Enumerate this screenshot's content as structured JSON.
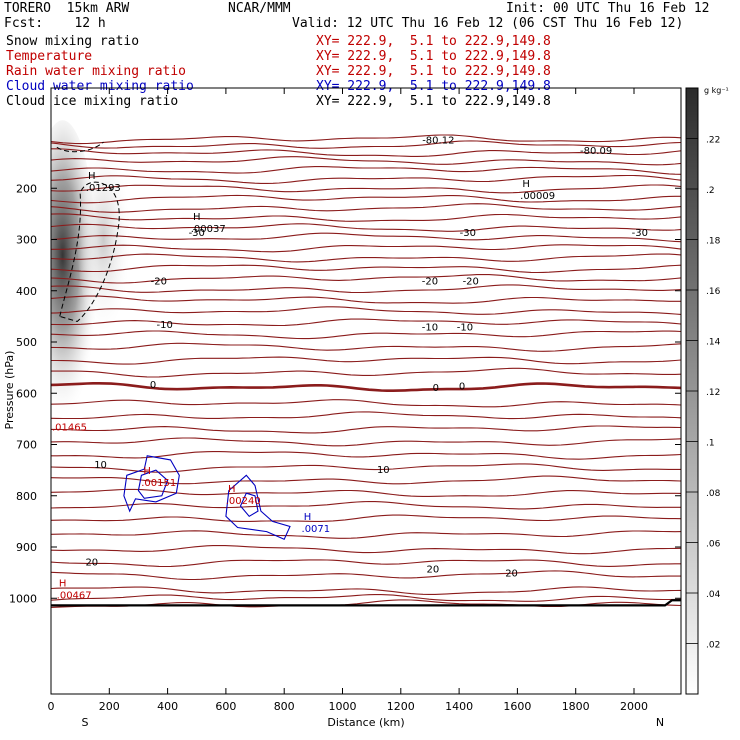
{
  "header": {
    "model": "TORERO  15km ARW",
    "center": "NCAR/MMM",
    "init": "Init: 00 UTC Thu 16 Feb 12",
    "fcst": "Fcst:    12 h",
    "valid": "Valid: 12 UTC Thu 16 Feb 12 (06 CST Thu 16 Feb 12)",
    "fields": [
      {
        "name": "Snow mixing ratio",
        "xy": "XY= 222.9,  5.1 to 222.9,149.8",
        "color": "#000000"
      },
      {
        "name": "Temperature",
        "xy": "XY= 222.9,  5.1 to 222.9,149.8",
        "color": "#c00000"
      },
      {
        "name": "Rain water mixing ratio",
        "xy": "XY= 222.9,  5.1 to 222.9,149.8",
        "color": "#c00000"
      },
      {
        "name": "Cloud water mixing ratio",
        "xy": "XY= 222.9,  5.1 to 222.9,149.8",
        "color": "#0000c0"
      },
      {
        "name": "Cloud ice mixing ratio",
        "xy": "XY= 222.9,  5.1 to 222.9,149.8",
        "color": "#000000"
      }
    ]
  },
  "chart_data": {
    "type": "cross-section contour",
    "xlabel": "Distance (km)",
    "ylabel": "Pressure (hPa)",
    "xlim": [
      0,
      2150
    ],
    "ylim": [
      1040,
      100
    ],
    "xticks": [
      0,
      200,
      400,
      600,
      800,
      1000,
      1200,
      1400,
      1600,
      1800,
      2000
    ],
    "yticks": [
      200,
      300,
      400,
      500,
      600,
      700,
      800,
      900,
      1000
    ],
    "endpoints": {
      "left": "S",
      "right": "N"
    },
    "colorbar": {
      "unit": "g kg⁻¹",
      "ticks": [
        ".02",
        ".04",
        ".06",
        ".08",
        ".1",
        ".12",
        ".14",
        ".16",
        ".18",
        ".2",
        ".22"
      ],
      "min": 0,
      "max": 0.24
    },
    "temperature_labels": [
      {
        "text": "-80.09",
        "x": 1870,
        "p": 125
      },
      {
        "text": "-30",
        "x": 500,
        "p": 285
      },
      {
        "text": "-30",
        "x": 1430,
        "p": 285
      },
      {
        "text": "-30",
        "x": 2020,
        "p": 285
      },
      {
        "text": "-20",
        "x": 370,
        "p": 380
      },
      {
        "text": "-20",
        "x": 1300,
        "p": 380
      },
      {
        "text": "-20",
        "x": 1440,
        "p": 380
      },
      {
        "text": "-10",
        "x": 390,
        "p": 465
      },
      {
        "text": "-10",
        "x": 1300,
        "p": 470
      },
      {
        "text": "-10",
        "x": 1420,
        "p": 470
      },
      {
        "text": "0",
        "x": 350,
        "p": 582
      },
      {
        "text": "0",
        "x": 1320,
        "p": 588
      },
      {
        "text": "0",
        "x": 1410,
        "p": 585
      },
      {
        "text": "10",
        "x": 170,
        "p": 738
      },
      {
        "text": "10",
        "x": 1140,
        "p": 748
      },
      {
        "text": "20",
        "x": 140,
        "p": 928
      },
      {
        "text": "20",
        "x": 1310,
        "p": 942
      },
      {
        "text": "20",
        "x": 1580,
        "p": 950
      }
    ],
    "extrema": [
      {
        "letter": "H",
        "value": ".01293",
        "x": 140,
        "p": 190,
        "color": "#000000"
      },
      {
        "letter": "H",
        "value": ".00037",
        "x": 500,
        "p": 270,
        "color": "#000000"
      },
      {
        "letter": "H",
        "value": ".00009",
        "x": 1630,
        "p": 205,
        "color": "#000000"
      },
      {
        "letter": "H",
        "value": ".00467",
        "x": 40,
        "p": 985,
        "color": "#c00000"
      },
      {
        "letter": "H",
        "value": ".00151",
        "x": 330,
        "p": 765,
        "color": "#c00000"
      },
      {
        "letter": "H",
        "value": ".00240",
        "x": 620,
        "p": 800,
        "color": "#c00000"
      },
      {
        "letter": "H",
        "value": ".0071",
        "x": 880,
        "p": 855,
        "color": "#0000c0"
      }
    ],
    "misc_labels": [
      {
        "text": ".01465",
        "x": 0,
        "p": 665,
        "color": "#c00000"
      },
      {
        "text": "-80.12",
        "x": 1270,
        "p": 105,
        "color": "#000000"
      }
    ]
  }
}
